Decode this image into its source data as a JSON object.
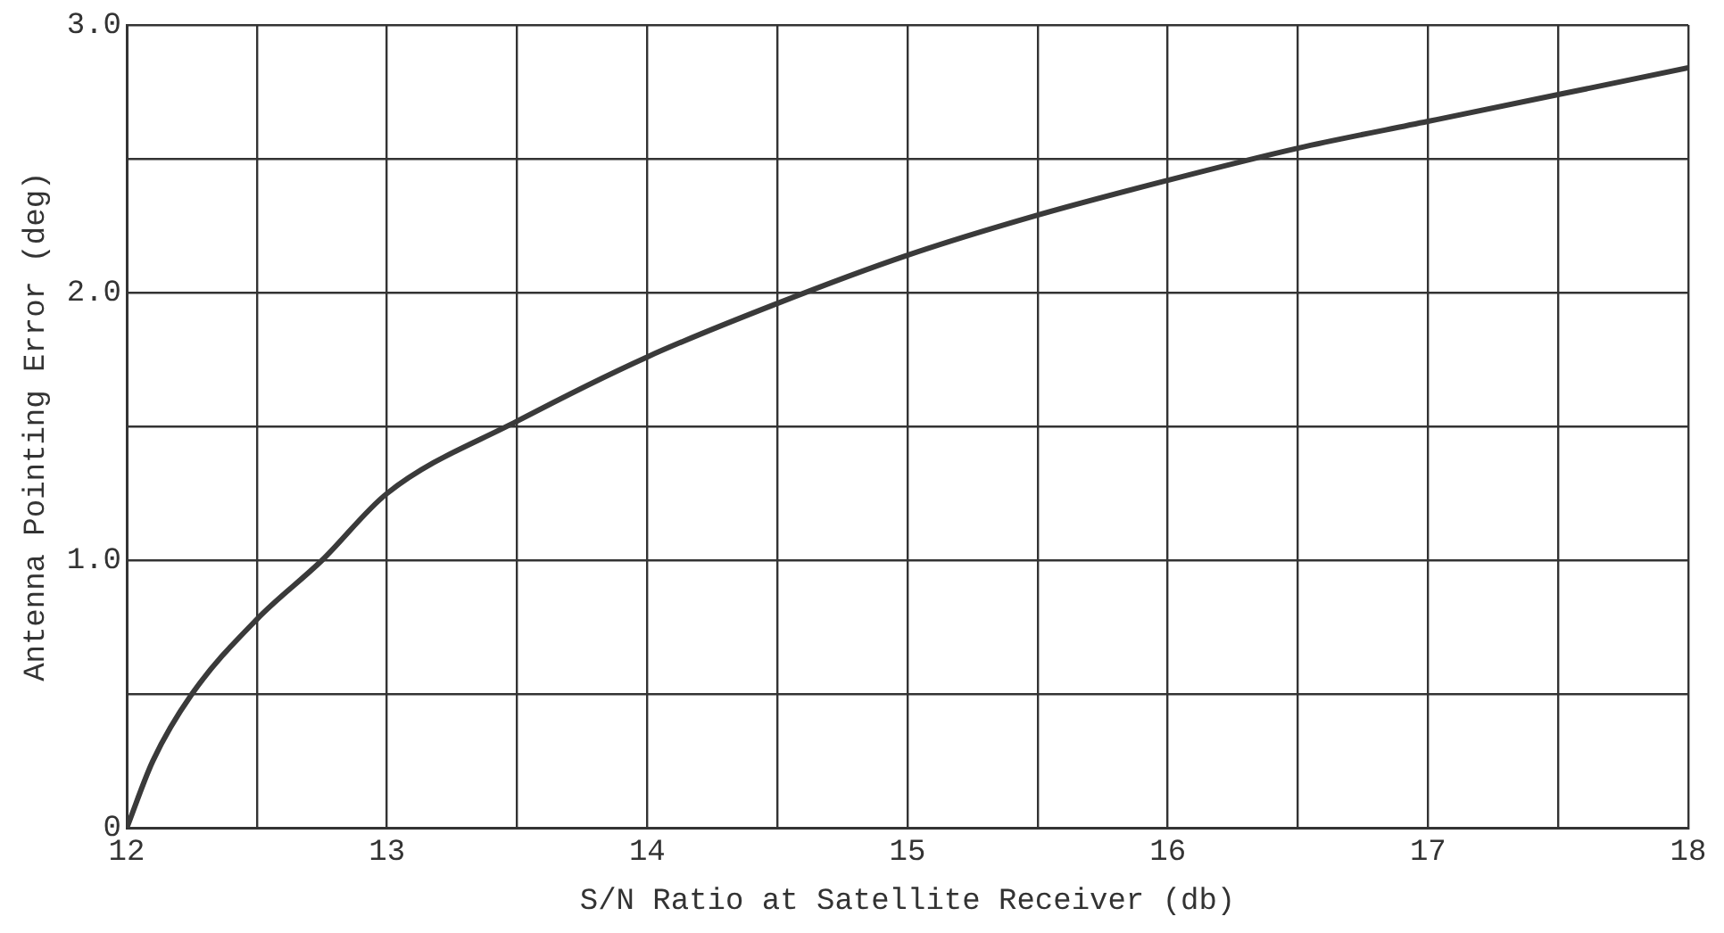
{
  "chart_data": {
    "type": "line",
    "xlabel": "S/N Ratio at Satellite Receiver (db)",
    "ylabel": "Antenna Pointing Error (deg)",
    "x": [
      12,
      12.1,
      12.25,
      12.5,
      12.75,
      13,
      13.5,
      14,
      14.5,
      15,
      15.5,
      16,
      16.5,
      17,
      17.5,
      18
    ],
    "series": [
      {
        "color": "#3a3a3a",
        "values": [
          0,
          0.25,
          0.5,
          0.78,
          1.0,
          1.25,
          1.52,
          1.76,
          1.96,
          2.14,
          2.29,
          2.42,
          2.54,
          2.64,
          2.74,
          2.84
        ]
      }
    ],
    "xlim": [
      12,
      18
    ],
    "xticks": [
      12,
      {
        "value": 12.5,
        "label": null
      },
      13,
      {
        "value": 13.5,
        "label": null
      },
      14,
      {
        "value": 14.5,
        "label": null
      },
      15,
      {
        "value": 15.5,
        "label": null
      },
      16,
      {
        "value": 16.5,
        "label": null
      },
      17,
      {
        "value": 17.5,
        "label": null
      },
      18
    ],
    "ylim": [
      0,
      3
    ],
    "yticks": [
      0,
      {
        "value": 0.5,
        "label": null
      },
      {
        "value": 1,
        "label": "1.0"
      },
      {
        "value": 1.5,
        "label": null
      },
      {
        "value": 2,
        "label": "2.0"
      },
      {
        "value": 2.5,
        "label": null
      },
      {
        "value": 3,
        "label": "3.0"
      }
    ],
    "grid": true,
    "marker": "none",
    "line_style": "solid",
    "legend": false
  }
}
